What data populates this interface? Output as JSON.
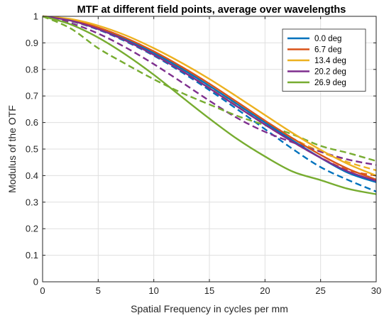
{
  "chart_data": {
    "type": "line",
    "title": "MTF at different field points, average over wavelengths",
    "xlabel": "Spatial Frequency in cycles per mm",
    "ylabel": "Modulus of the OTF",
    "xlim": [
      0,
      30
    ],
    "ylim": [
      0,
      1
    ],
    "xticks": [
      0,
      5,
      10,
      15,
      20,
      25,
      30
    ],
    "yticks": [
      0,
      0.1,
      0.2,
      0.3,
      0.4,
      0.5,
      0.6,
      0.7,
      0.8,
      0.9,
      1
    ],
    "grid": true,
    "legend_position": "top-right",
    "x": [
      0,
      2.5,
      5,
      7.5,
      10,
      12.5,
      15,
      17.5,
      20,
      22.5,
      25,
      27.5,
      30
    ],
    "series": [
      {
        "name": "0.0 deg",
        "color": "#0072BD",
        "style": "solid",
        "values": [
          1.0,
          0.985,
          0.955,
          0.913,
          0.862,
          0.803,
          0.738,
          0.669,
          0.6,
          0.532,
          0.467,
          0.41,
          0.375
        ]
      },
      {
        "name": "0.0 deg",
        "color": "#0072BD",
        "style": "dashed",
        "in_legend": false,
        "values": [
          1.0,
          0.982,
          0.95,
          0.905,
          0.852,
          0.79,
          0.722,
          0.65,
          0.575,
          0.5,
          0.432,
          0.383,
          0.34
        ]
      },
      {
        "name": "6.7 deg",
        "color": "#D95319",
        "style": "solid",
        "values": [
          1.0,
          0.987,
          0.958,
          0.918,
          0.868,
          0.81,
          0.746,
          0.677,
          0.607,
          0.54,
          0.478,
          0.425,
          0.385
        ]
      },
      {
        "name": "6.7 deg",
        "color": "#D95319",
        "style": "dashed",
        "in_legend": false,
        "values": [
          1.0,
          0.983,
          0.952,
          0.908,
          0.855,
          0.795,
          0.729,
          0.66,
          0.592,
          0.527,
          0.468,
          0.42,
          0.4
        ]
      },
      {
        "name": "13.4 deg",
        "color": "#EDB120",
        "style": "solid",
        "values": [
          1.0,
          0.99,
          0.965,
          0.928,
          0.88,
          0.825,
          0.764,
          0.697,
          0.628,
          0.56,
          0.497,
          0.443,
          0.4
        ]
      },
      {
        "name": "13.4 deg",
        "color": "#EDB120",
        "style": "dashed",
        "in_legend": false,
        "values": [
          1.0,
          0.986,
          0.957,
          0.913,
          0.86,
          0.8,
          0.735,
          0.667,
          0.6,
          0.54,
          0.49,
          0.45,
          0.42
        ]
      },
      {
        "name": "20.2 deg",
        "color": "#7E2F8E",
        "style": "solid",
        "values": [
          1.0,
          0.984,
          0.952,
          0.908,
          0.855,
          0.795,
          0.729,
          0.66,
          0.592,
          0.527,
          0.467,
          0.415,
          0.38
        ]
      },
      {
        "name": "20.2 deg",
        "color": "#7E2F8E",
        "style": "dashed",
        "in_legend": false,
        "values": [
          1.0,
          0.975,
          0.935,
          0.882,
          0.82,
          0.752,
          0.682,
          0.617,
          0.565,
          0.525,
          0.49,
          0.46,
          0.44
        ]
      },
      {
        "name": "26.9 deg",
        "color": "#77AC30",
        "style": "solid",
        "values": [
          1.0,
          0.97,
          0.92,
          0.855,
          0.78,
          0.697,
          0.615,
          0.538,
          0.472,
          0.415,
          0.383,
          0.35,
          0.33
        ]
      },
      {
        "name": "26.9 deg",
        "color": "#77AC30",
        "style": "dashed",
        "in_legend": false,
        "values": [
          1.0,
          0.955,
          0.88,
          0.82,
          0.763,
          0.712,
          0.668,
          0.625,
          0.59,
          0.555,
          0.512,
          0.485,
          0.455
        ]
      }
    ]
  }
}
